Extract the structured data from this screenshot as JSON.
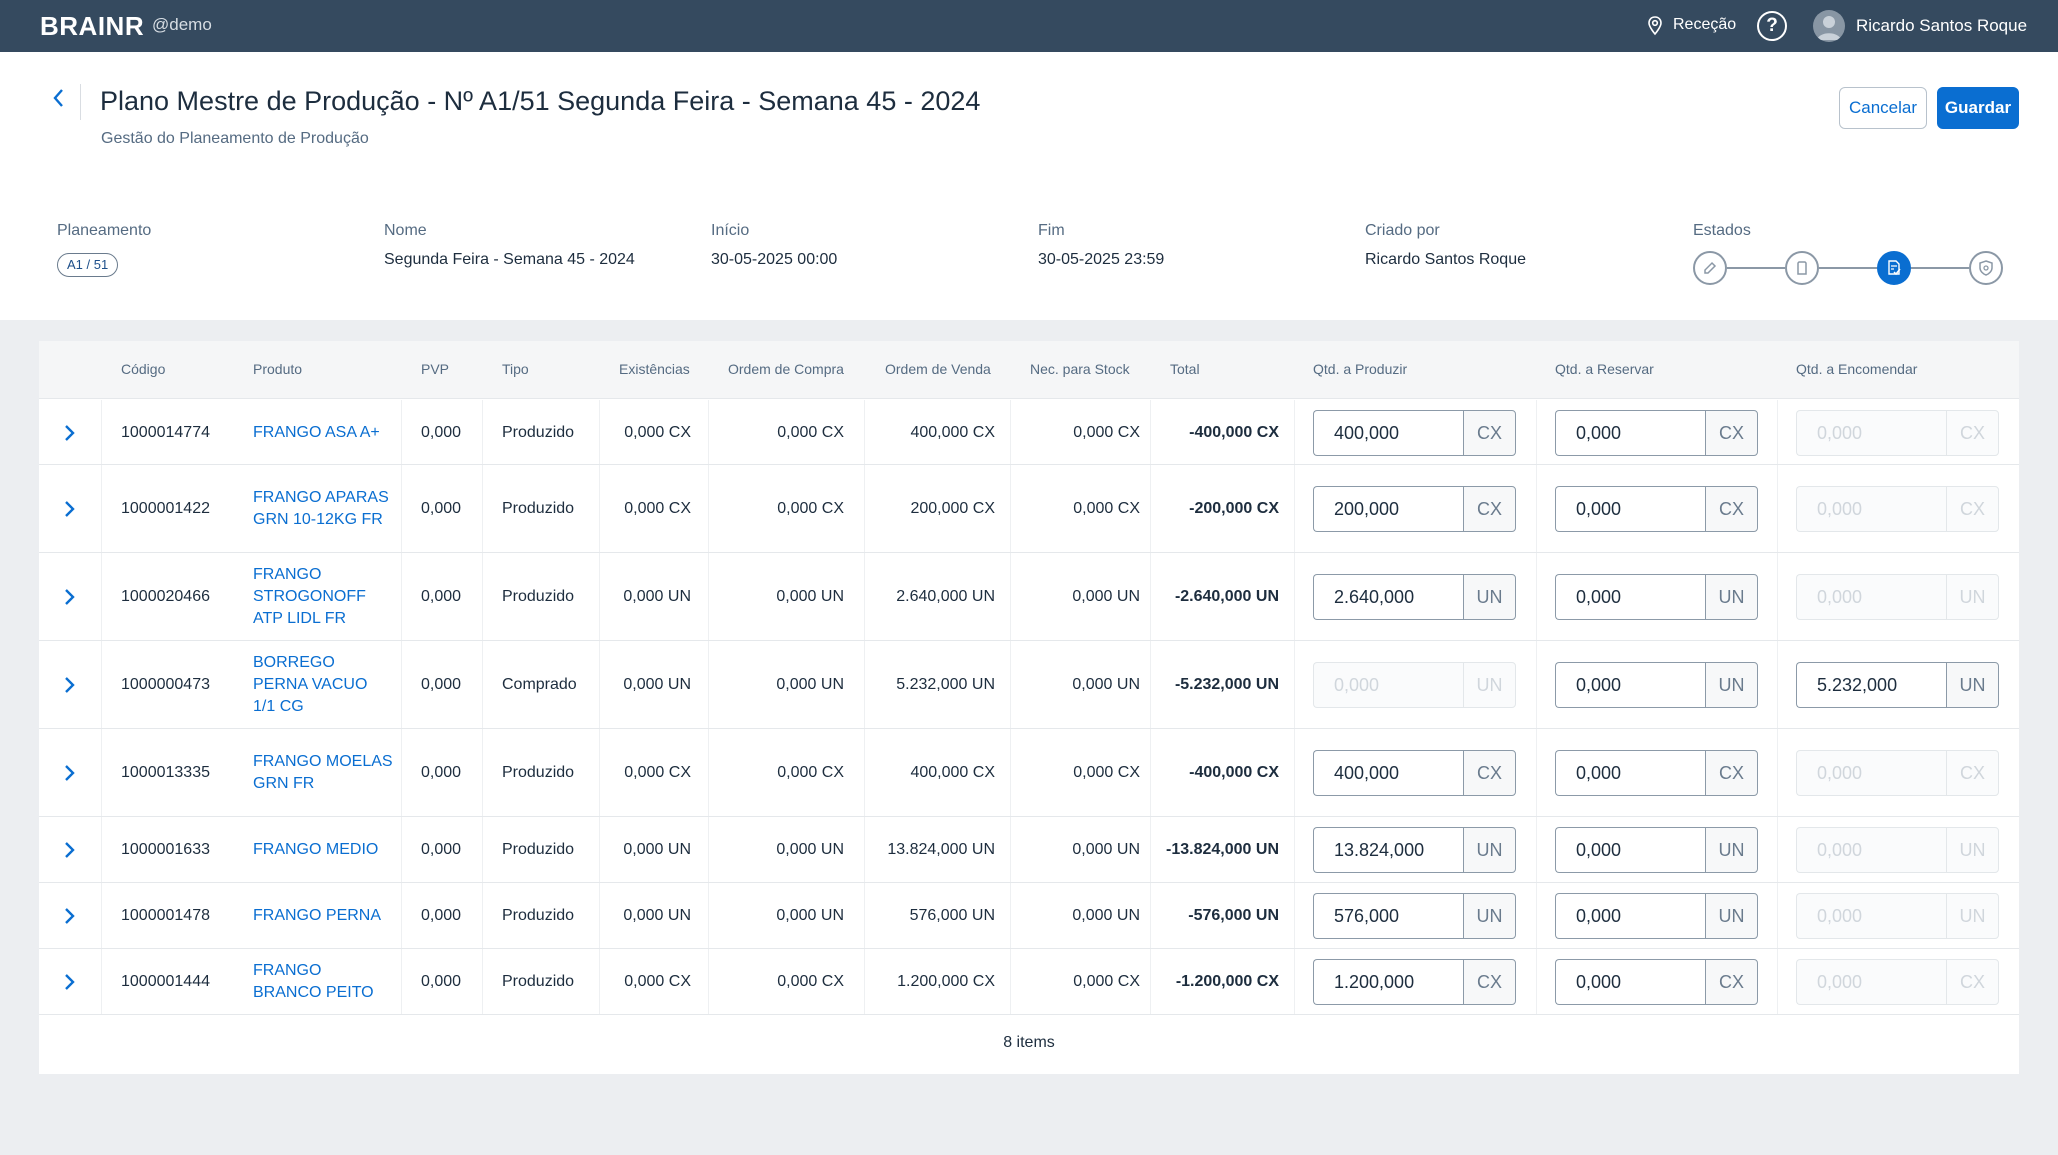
{
  "app": {
    "brand": "BRAINR",
    "tenant": "@demo",
    "location": "Receção",
    "user": "Ricardo Santos Roque"
  },
  "page": {
    "title": "Plano Mestre de Produção - Nº A1/51 Segunda Feira - Semana 45 - 2024",
    "subtitle": "Gestão do Planeamento de Produção",
    "cancel_label": "Cancelar",
    "save_label": "Guardar"
  },
  "info": {
    "planeamento_label": "Planeamento",
    "planeamento_value": "A1 / 51",
    "nome_label": "Nome",
    "nome_value": "Segunda Feira - Semana 45 - 2024",
    "inicio_label": "Início",
    "inicio_value": "30-05-2025 00:00",
    "fim_label": "Fim",
    "fim_value": "30-05-2025 23:59",
    "criado_label": "Criado por",
    "criado_value": "Ricardo Santos Roque",
    "estados_label": "Estados",
    "estados_active_step": 3
  },
  "table": {
    "headers": [
      "Código",
      "Produto",
      "PVP",
      "Tipo",
      "Existências",
      "Ordem de Compra",
      "Ordem de Venda",
      "Nec. para Stock",
      "Total",
      "Qtd. a Produzir",
      "Qtd. a Reservar",
      "Qtd. a Encomendar"
    ],
    "rows": [
      {
        "codigo": "1000014774",
        "produto": "FRANGO ASA A+",
        "pvp": "0,000",
        "tipo": "Produzido",
        "existencias": "0,000 CX",
        "ordem_compra": "0,000 CX",
        "ordem_venda": "400,000 CX",
        "nec_stock": "0,000 CX",
        "total": "-400,000 CX",
        "produzir": "400,000",
        "produzir_unit": "CX",
        "reservar": "0,000",
        "reservar_unit": "CX",
        "encomendar": "0,000",
        "encomendar_unit": "CX",
        "produzir_enabled": true,
        "encomendar_enabled": false
      },
      {
        "codigo": "1000001422",
        "produto": "FRANGO APARAS GRN 10-12KG FR",
        "pvp": "0,000",
        "tipo": "Produzido",
        "existencias": "0,000 CX",
        "ordem_compra": "0,000 CX",
        "ordem_venda": "200,000 CX",
        "nec_stock": "0,000 CX",
        "total": "-200,000 CX",
        "produzir": "200,000",
        "produzir_unit": "CX",
        "reservar": "0,000",
        "reservar_unit": "CX",
        "encomendar": "0,000",
        "encomendar_unit": "CX",
        "produzir_enabled": true,
        "encomendar_enabled": false
      },
      {
        "codigo": "1000020466",
        "produto": "FRANGO STROGONOFF ATP LIDL FR",
        "pvp": "0,000",
        "tipo": "Produzido",
        "existencias": "0,000 UN",
        "ordem_compra": "0,000 UN",
        "ordem_venda": "2.640,000 UN",
        "nec_stock": "0,000 UN",
        "total": "-2.640,000 UN",
        "produzir": "2.640,000",
        "produzir_unit": "UN",
        "reservar": "0,000",
        "reservar_unit": "UN",
        "encomendar": "0,000",
        "encomendar_unit": "UN",
        "produzir_enabled": true,
        "encomendar_enabled": false
      },
      {
        "codigo": "1000000473",
        "produto": "BORREGO PERNA VACUO 1/1 CG",
        "pvp": "0,000",
        "tipo": "Comprado",
        "existencias": "0,000 UN",
        "ordem_compra": "0,000 UN",
        "ordem_venda": "5.232,000 UN",
        "nec_stock": "0,000 UN",
        "total": "-5.232,000 UN",
        "produzir": "0,000",
        "produzir_unit": "UN",
        "reservar": "0,000",
        "reservar_unit": "UN",
        "encomendar": "5.232,000",
        "encomendar_unit": "UN",
        "produzir_enabled": false,
        "encomendar_enabled": true
      },
      {
        "codigo": "1000013335",
        "produto": "FRANGO MOELAS GRN FR",
        "pvp": "0,000",
        "tipo": "Produzido",
        "existencias": "0,000 CX",
        "ordem_compra": "0,000 CX",
        "ordem_venda": "400,000 CX",
        "nec_stock": "0,000 CX",
        "total": "-400,000 CX",
        "produzir": "400,000",
        "produzir_unit": "CX",
        "reservar": "0,000",
        "reservar_unit": "CX",
        "encomendar": "0,000",
        "encomendar_unit": "CX",
        "produzir_enabled": true,
        "encomendar_enabled": false
      },
      {
        "codigo": "1000001633",
        "produto": "FRANGO MEDIO",
        "pvp": "0,000",
        "tipo": "Produzido",
        "existencias": "0,000 UN",
        "ordem_compra": "0,000 UN",
        "ordem_venda": "13.824,000 UN",
        "nec_stock": "0,000 UN",
        "total": "-13.824,000 UN",
        "produzir": "13.824,000",
        "produzir_unit": "UN",
        "reservar": "0,000",
        "reservar_unit": "UN",
        "encomendar": "0,000",
        "encomendar_unit": "UN",
        "produzir_enabled": true,
        "encomendar_enabled": false
      },
      {
        "codigo": "1000001478",
        "produto": "FRANGO PERNA",
        "pvp": "0,000",
        "tipo": "Produzido",
        "existencias": "0,000 UN",
        "ordem_compra": "0,000 UN",
        "ordem_venda": "576,000 UN",
        "nec_stock": "0,000 UN",
        "total": "-576,000 UN",
        "produzir": "576,000",
        "produzir_unit": "UN",
        "reservar": "0,000",
        "reservar_unit": "UN",
        "encomendar": "0,000",
        "encomendar_unit": "UN",
        "produzir_enabled": true,
        "encomendar_enabled": false
      },
      {
        "codigo": "1000001444",
        "produto": "FRANGO BRANCO PEITO",
        "pvp": "0,000",
        "tipo": "Produzido",
        "existencias": "0,000 CX",
        "ordem_compra": "0,000 CX",
        "ordem_venda": "1.200,000 CX",
        "nec_stock": "0,000 CX",
        "total": "-1.200,000 CX",
        "produzir": "1.200,000",
        "produzir_unit": "CX",
        "reservar": "0,000",
        "reservar_unit": "CX",
        "encomendar": "0,000",
        "encomendar_unit": "CX",
        "produzir_enabled": true,
        "encomendar_enabled": false
      }
    ],
    "footer": "8 items"
  },
  "colors": {
    "topbar": "#354a5f",
    "accent": "#0a6ed1",
    "background": "#eceef1"
  }
}
